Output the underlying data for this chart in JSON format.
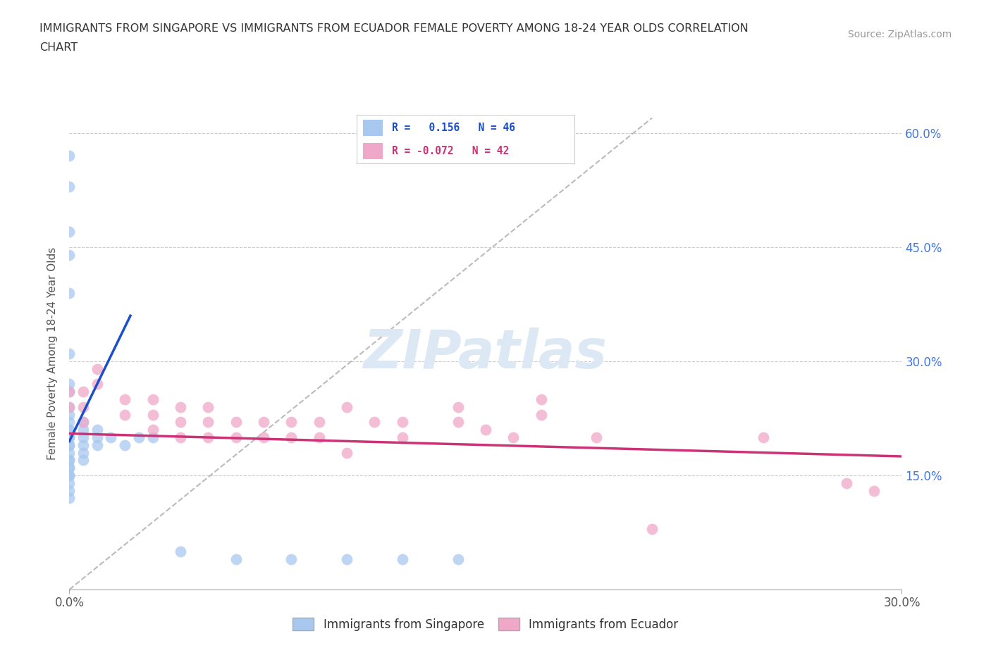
{
  "title_line1": "IMMIGRANTS FROM SINGAPORE VS IMMIGRANTS FROM ECUADOR FEMALE POVERTY AMONG 18-24 YEAR OLDS CORRELATION",
  "title_line2": "CHART",
  "source": "Source: ZipAtlas.com",
  "ylabel_label": "Female Poverty Among 18-24 Year Olds",
  "xlim": [
    0.0,
    0.3
  ],
  "ylim": [
    0.0,
    0.62
  ],
  "yticks": [
    0.0,
    0.15,
    0.3,
    0.45,
    0.6
  ],
  "yticklabels_right": [
    "",
    "15.0%",
    "30.0%",
    "45.0%",
    "60.0%"
  ],
  "xticks": [
    0.0,
    0.3
  ],
  "xticklabels": [
    "0.0%",
    "30.0%"
  ],
  "watermark": "ZIPatlas",
  "singapore_color": "#a8c8f0",
  "ecuador_color": "#f0a8c8",
  "singapore_line_color": "#1a4fcc",
  "ecuador_line_color": "#cc3377",
  "legend_r1_text": "R =   0.156   N = 46",
  "legend_r2_text": "R = -0.072   N = 42",
  "legend_label1": "Immigrants from Singapore",
  "legend_label2": "Immigrants from Ecuador",
  "grid_color": "#cccccc",
  "diagonal_line": [
    [
      0.0,
      0.0
    ],
    [
      0.21,
      0.62
    ]
  ],
  "singapore_trendline": [
    [
      0.0,
      0.195
    ],
    [
      0.022,
      0.36
    ]
  ],
  "ecuador_trendline": [
    [
      0.0,
      0.205
    ],
    [
      0.3,
      0.175
    ]
  ],
  "singapore_scatter": [
    [
      0.0,
      0.57
    ],
    [
      0.0,
      0.53
    ],
    [
      0.0,
      0.47
    ],
    [
      0.0,
      0.44
    ],
    [
      0.0,
      0.39
    ],
    [
      0.0,
      0.31
    ],
    [
      0.0,
      0.27
    ],
    [
      0.0,
      0.26
    ],
    [
      0.0,
      0.24
    ],
    [
      0.0,
      0.23
    ],
    [
      0.0,
      0.22
    ],
    [
      0.0,
      0.21
    ],
    [
      0.0,
      0.21
    ],
    [
      0.0,
      0.2
    ],
    [
      0.0,
      0.2
    ],
    [
      0.0,
      0.19
    ],
    [
      0.0,
      0.19
    ],
    [
      0.0,
      0.18
    ],
    [
      0.0,
      0.17
    ],
    [
      0.0,
      0.17
    ],
    [
      0.0,
      0.16
    ],
    [
      0.0,
      0.16
    ],
    [
      0.0,
      0.15
    ],
    [
      0.0,
      0.15
    ],
    [
      0.0,
      0.14
    ],
    [
      0.0,
      0.13
    ],
    [
      0.0,
      0.12
    ],
    [
      0.005,
      0.22
    ],
    [
      0.005,
      0.21
    ],
    [
      0.005,
      0.2
    ],
    [
      0.005,
      0.19
    ],
    [
      0.005,
      0.18
    ],
    [
      0.005,
      0.17
    ],
    [
      0.01,
      0.21
    ],
    [
      0.01,
      0.2
    ],
    [
      0.01,
      0.19
    ],
    [
      0.015,
      0.2
    ],
    [
      0.02,
      0.19
    ],
    [
      0.025,
      0.2
    ],
    [
      0.03,
      0.2
    ],
    [
      0.04,
      0.05
    ],
    [
      0.06,
      0.04
    ],
    [
      0.08,
      0.04
    ],
    [
      0.1,
      0.04
    ],
    [
      0.12,
      0.04
    ],
    [
      0.14,
      0.04
    ]
  ],
  "ecuador_scatter": [
    [
      0.0,
      0.26
    ],
    [
      0.0,
      0.24
    ],
    [
      0.005,
      0.26
    ],
    [
      0.005,
      0.24
    ],
    [
      0.005,
      0.22
    ],
    [
      0.01,
      0.29
    ],
    [
      0.01,
      0.27
    ],
    [
      0.02,
      0.25
    ],
    [
      0.02,
      0.23
    ],
    [
      0.03,
      0.25
    ],
    [
      0.03,
      0.23
    ],
    [
      0.03,
      0.21
    ],
    [
      0.04,
      0.24
    ],
    [
      0.04,
      0.22
    ],
    [
      0.04,
      0.2
    ],
    [
      0.05,
      0.24
    ],
    [
      0.05,
      0.22
    ],
    [
      0.05,
      0.2
    ],
    [
      0.06,
      0.22
    ],
    [
      0.06,
      0.2
    ],
    [
      0.07,
      0.22
    ],
    [
      0.07,
      0.2
    ],
    [
      0.08,
      0.22
    ],
    [
      0.08,
      0.2
    ],
    [
      0.09,
      0.22
    ],
    [
      0.09,
      0.2
    ],
    [
      0.1,
      0.24
    ],
    [
      0.1,
      0.18
    ],
    [
      0.11,
      0.22
    ],
    [
      0.12,
      0.22
    ],
    [
      0.12,
      0.2
    ],
    [
      0.14,
      0.24
    ],
    [
      0.14,
      0.22
    ],
    [
      0.15,
      0.21
    ],
    [
      0.16,
      0.2
    ],
    [
      0.17,
      0.25
    ],
    [
      0.17,
      0.23
    ],
    [
      0.19,
      0.2
    ],
    [
      0.21,
      0.08
    ],
    [
      0.25,
      0.2
    ],
    [
      0.28,
      0.14
    ],
    [
      0.29,
      0.13
    ]
  ]
}
